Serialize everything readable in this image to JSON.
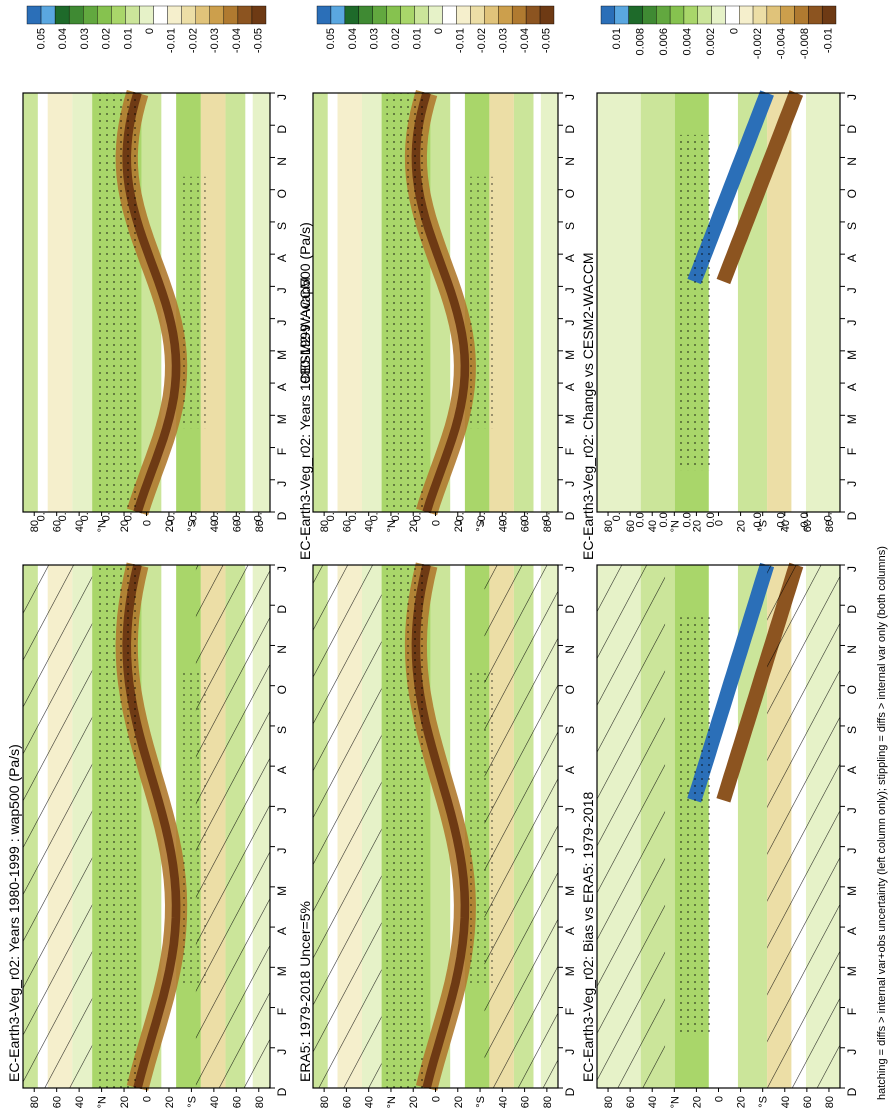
{
  "months": [
    "D",
    "J",
    "F",
    "M",
    "A",
    "M",
    "J",
    "J",
    "A",
    "S",
    "O",
    "N",
    "D",
    "J"
  ],
  "lat_ticks": [
    "80",
    "60",
    "40",
    "°N",
    "20",
    "0",
    "20",
    "°S",
    "40",
    "60",
    "80"
  ],
  "colors": {
    "blue": [
      "#2b6fb8",
      "#5aa7e0"
    ],
    "greens": [
      "#1e6a2a",
      "#3f8a33",
      "#62a83f",
      "#86c24f",
      "#a9d66a",
      "#cbe59a",
      "#e6f2c8"
    ],
    "white": "#ffffff",
    "browns": [
      "#f5efcc",
      "#ecdea6",
      "#e0c37a",
      "#cc9f4c",
      "#b07a30",
      "#8c5420",
      "#6e3a14"
    ]
  },
  "footnote": "hatching = diffs > internal var+obs uncertainty (left column only); stippling = diffs > internal var only (both columns)",
  "colorbars": {
    "wap": [
      "0.05",
      "0.04",
      "0.03",
      "0.02",
      "0.01",
      "0",
      "-0.01",
      "-0.02",
      "-0.03",
      "-0.04",
      "-0.05"
    ],
    "diff": [
      "0.01",
      "0.008",
      "0.006",
      "0.004",
      "0.002",
      "0",
      "-0.002",
      "-0.004",
      "-0.008",
      "-0.01"
    ]
  },
  "panels": [
    {
      "title": "EC-Earth3-Veg_r02: Years 1980-1999 : wap500 (Pa/s)"
    },
    {
      "title": "EC-Earth3-Veg_r02: Years 1980-1999 : wap500 (Pa/s)"
    },
    {
      "title": "ERA5: 1979-2018 Uncer=5%"
    },
    {
      "title": "CESM2-WACCM"
    },
    {
      "title": "EC-Earth3-Veg_r02: Bias vs ERA5: 1979-2018"
    },
    {
      "title": "EC-Earth3-Veg_r02: Change vs CESM2-WACCM"
    }
  ],
  "chart_data": [
    {
      "type": "heatmap",
      "title": "EC-Earth3-Veg_r02: Years 1980-1999 : wap500 (Pa/s)",
      "xlabel": "",
      "ylabel": "",
      "x": [
        "D",
        "J",
        "F",
        "M",
        "A",
        "M",
        "J",
        "J",
        "A",
        "S",
        "O",
        "N",
        "D",
        "J"
      ],
      "y": [
        "80",
        "60",
        "40",
        "°N",
        "20",
        "0",
        "20",
        "°S",
        "40",
        "60",
        "80"
      ],
      "legend": {
        "colorbar": [
          "0.05",
          "0.04",
          "0.03",
          "0.02",
          "0.01",
          "0",
          "-0.01",
          "-0.02",
          "-0.03",
          "-0.04",
          "-0.05"
        ]
      },
      "hatching": true,
      "stippling": true
    },
    {
      "type": "heatmap",
      "title": "EC-Earth3-Veg_r02: Years 1980-1999 : wap500 (Pa/s)",
      "xlabel": "",
      "ylabel": "",
      "x": [
        "D",
        "J",
        "F",
        "M",
        "A",
        "M",
        "J",
        "J",
        "A",
        "S",
        "O",
        "N",
        "D",
        "J"
      ],
      "y": [
        "80",
        "60",
        "40",
        "°N",
        "20",
        "0",
        "20",
        "°S",
        "40",
        "60",
        "80"
      ],
      "legend": {
        "colorbar": [
          "0.05",
          "0.04",
          "0.03",
          "0.02",
          "0.01",
          "0",
          "-0.01",
          "-0.02",
          "-0.03",
          "-0.04",
          "-0.05"
        ]
      },
      "hatching": false,
      "stippling": true
    },
    {
      "type": "heatmap",
      "title": "ERA5: 1979-2018 Uncer=5%",
      "xlabel": "",
      "ylabel": "",
      "x": [
        "D",
        "J",
        "F",
        "M",
        "A",
        "M",
        "J",
        "J",
        "A",
        "S",
        "O",
        "N",
        "D",
        "J"
      ],
      "y": [
        "80",
        "60",
        "40",
        "°N",
        "20",
        "0",
        "20",
        "°S",
        "40",
        "60",
        "80"
      ],
      "legend": {
        "colorbar": [
          "0.05",
          "0.04",
          "0.03",
          "0.02",
          "0.01",
          "0",
          "-0.01",
          "-0.02",
          "-0.03",
          "-0.04",
          "-0.05"
        ]
      },
      "hatching": true,
      "stippling": true
    },
    {
      "type": "heatmap",
      "title": "CESM2-WACCM",
      "xlabel": "",
      "ylabel": "",
      "x": [
        "D",
        "J",
        "F",
        "M",
        "A",
        "M",
        "J",
        "J",
        "A",
        "S",
        "O",
        "N",
        "D",
        "J"
      ],
      "y": [
        "80",
        "60",
        "40",
        "°N",
        "20",
        "0",
        "20",
        "°S",
        "40",
        "60",
        "80"
      ],
      "legend": {
        "colorbar": [
          "0.05",
          "0.04",
          "0.03",
          "0.02",
          "0.01",
          "0",
          "-0.01",
          "-0.02",
          "-0.03",
          "-0.04",
          "-0.05"
        ]
      },
      "hatching": false,
      "stippling": true
    },
    {
      "type": "heatmap",
      "title": "EC-Earth3-Veg_r02: Bias vs ERA5: 1979-2018",
      "xlabel": "",
      "ylabel": "",
      "x": [
        "D",
        "J",
        "F",
        "M",
        "A",
        "M",
        "J",
        "J",
        "A",
        "S",
        "O",
        "N",
        "D",
        "J"
      ],
      "y": [
        "80",
        "60",
        "40",
        "°N",
        "20",
        "0",
        "20",
        "°S",
        "40",
        "60",
        "80"
      ],
      "legend": {
        "colorbar": [
          "0.01",
          "0.008",
          "0.006",
          "0.004",
          "0.002",
          "0",
          "-0.002",
          "-0.004",
          "-0.008",
          "-0.01"
        ]
      },
      "hatching": true,
      "stippling": true
    },
    {
      "type": "heatmap",
      "title": "EC-Earth3-Veg_r02: Change vs CESM2-WACCM",
      "xlabel": "",
      "ylabel": "",
      "x": [
        "D",
        "J",
        "F",
        "M",
        "A",
        "M",
        "J",
        "J",
        "A",
        "S",
        "O",
        "N",
        "D",
        "J"
      ],
      "y": [
        "80",
        "60",
        "40",
        "°N",
        "20",
        "0",
        "20",
        "°S",
        "40",
        "60",
        "80"
      ],
      "legend": {
        "colorbar": [
          "0.01",
          "0.008",
          "0.006",
          "0.004",
          "0.002",
          "0",
          "-0.002",
          "-0.004",
          "-0.008",
          "-0.01"
        ]
      },
      "hatching": false,
      "stippling": true
    }
  ]
}
